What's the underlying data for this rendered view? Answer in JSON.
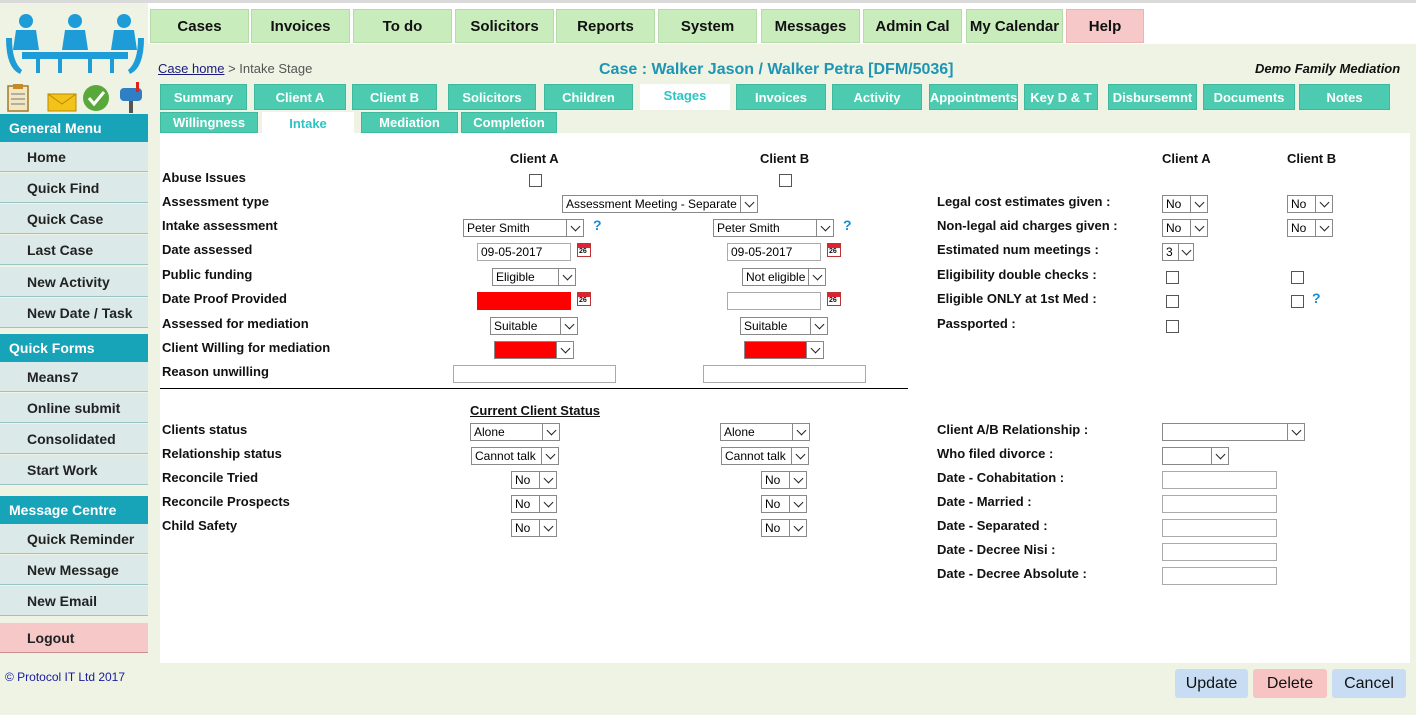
{
  "nav": {
    "items": [
      "Cases",
      "Invoices",
      "To do",
      "Solicitors",
      "Reports",
      "System",
      "Messages",
      "Admin Cal",
      "My Calendar",
      "Help"
    ]
  },
  "sidebar": {
    "general_menu": "General Menu",
    "general_items": [
      "Home",
      "Quick Find",
      "Quick Case",
      "Last Case",
      "New Activity",
      "New Date / Task"
    ],
    "quick_forms": "Quick Forms",
    "quick_items": [
      "Means7",
      "Online submit",
      "Consolidated",
      "Start Work"
    ],
    "message_centre": "Message Centre",
    "message_items": [
      "Quick Reminder",
      "New Message",
      "New Email"
    ],
    "logout": "Logout",
    "copyright": "© Protocol IT Ltd 2017"
  },
  "header": {
    "crumb_link": "Case home",
    "crumb_rest": " > Intake Stage",
    "case_title": "Case : Walker Jason / Walker Petra [DFM/5036]",
    "firm": "Demo Family Mediation"
  },
  "tabs_row1": [
    "Summary",
    "Client A",
    "Client B",
    "Solicitors",
    "Children",
    "Stages",
    "Invoices",
    "Activity",
    "Appointments",
    "Key D & T",
    "Disbursemnt",
    "Documents",
    "Notes"
  ],
  "tabs_row2": [
    "Willingness",
    "Intake",
    "Mediation",
    "Completion"
  ],
  "form": {
    "client_a": "Client A",
    "client_b": "Client B",
    "labels": {
      "abuse": "Abuse Issues",
      "assessment_type": "Assessment type",
      "intake_assessment": "Intake assessment",
      "date_assessed": "Date assessed",
      "public_funding": "Public funding",
      "date_proof": "Date Proof Provided",
      "assessed_mediation": "Assessed for mediation",
      "willing": "Client Willing for mediation",
      "reason_unwilling": "Reason unwilling",
      "current_status": "Current Client Status",
      "clients_status": "Clients status",
      "relationship_status": "Relationship status",
      "reconcile_tried": "Reconcile Tried",
      "reconcile_prospects": "Reconcile Prospects",
      "child_safety": "Child Safety",
      "legal_cost": "Legal cost estimates given :",
      "non_legal": "Non-legal aid charges given :",
      "est_meetings": "Estimated num meetings :",
      "elig_double": "Eligibility double checks :",
      "elig_only": "Eligible ONLY at 1st Med :",
      "passported": "Passported :",
      "ab_relationship": "Client A/B Relationship :",
      "who_filed": "Who filed divorce :",
      "date_cohab": "Date - Cohabitation :",
      "date_married": "Date - Married :",
      "date_separated": "Date - Separated :",
      "date_nisi": "Date - Decree Nisi :",
      "date_absolute": "Date - Decree Absolute :"
    },
    "values": {
      "assessment_type": "Assessment Meeting - Separate",
      "intake_a": "Peter Smith",
      "intake_b": "Peter Smith",
      "date_a": "09-05-2017",
      "date_b": "09-05-2017",
      "funding_a": "Eligible",
      "funding_b": "Not eligible",
      "assessed_a": "Suitable",
      "assessed_b": "Suitable",
      "status_a": "Alone",
      "status_b": "Alone",
      "rel_a": "Cannot talk",
      "rel_b": "Cannot talk",
      "no": "No",
      "est_meetings": "3"
    },
    "help_icon": "?"
  },
  "buttons": {
    "update": "Update",
    "delete": "Delete",
    "cancel": "Cancel"
  },
  "colors": {
    "tab": "#4ccbb0",
    "sidehead": "#17a3b8",
    "nav": "#c9ecbd",
    "title": "#1f95b4",
    "required": "#ff0000"
  }
}
